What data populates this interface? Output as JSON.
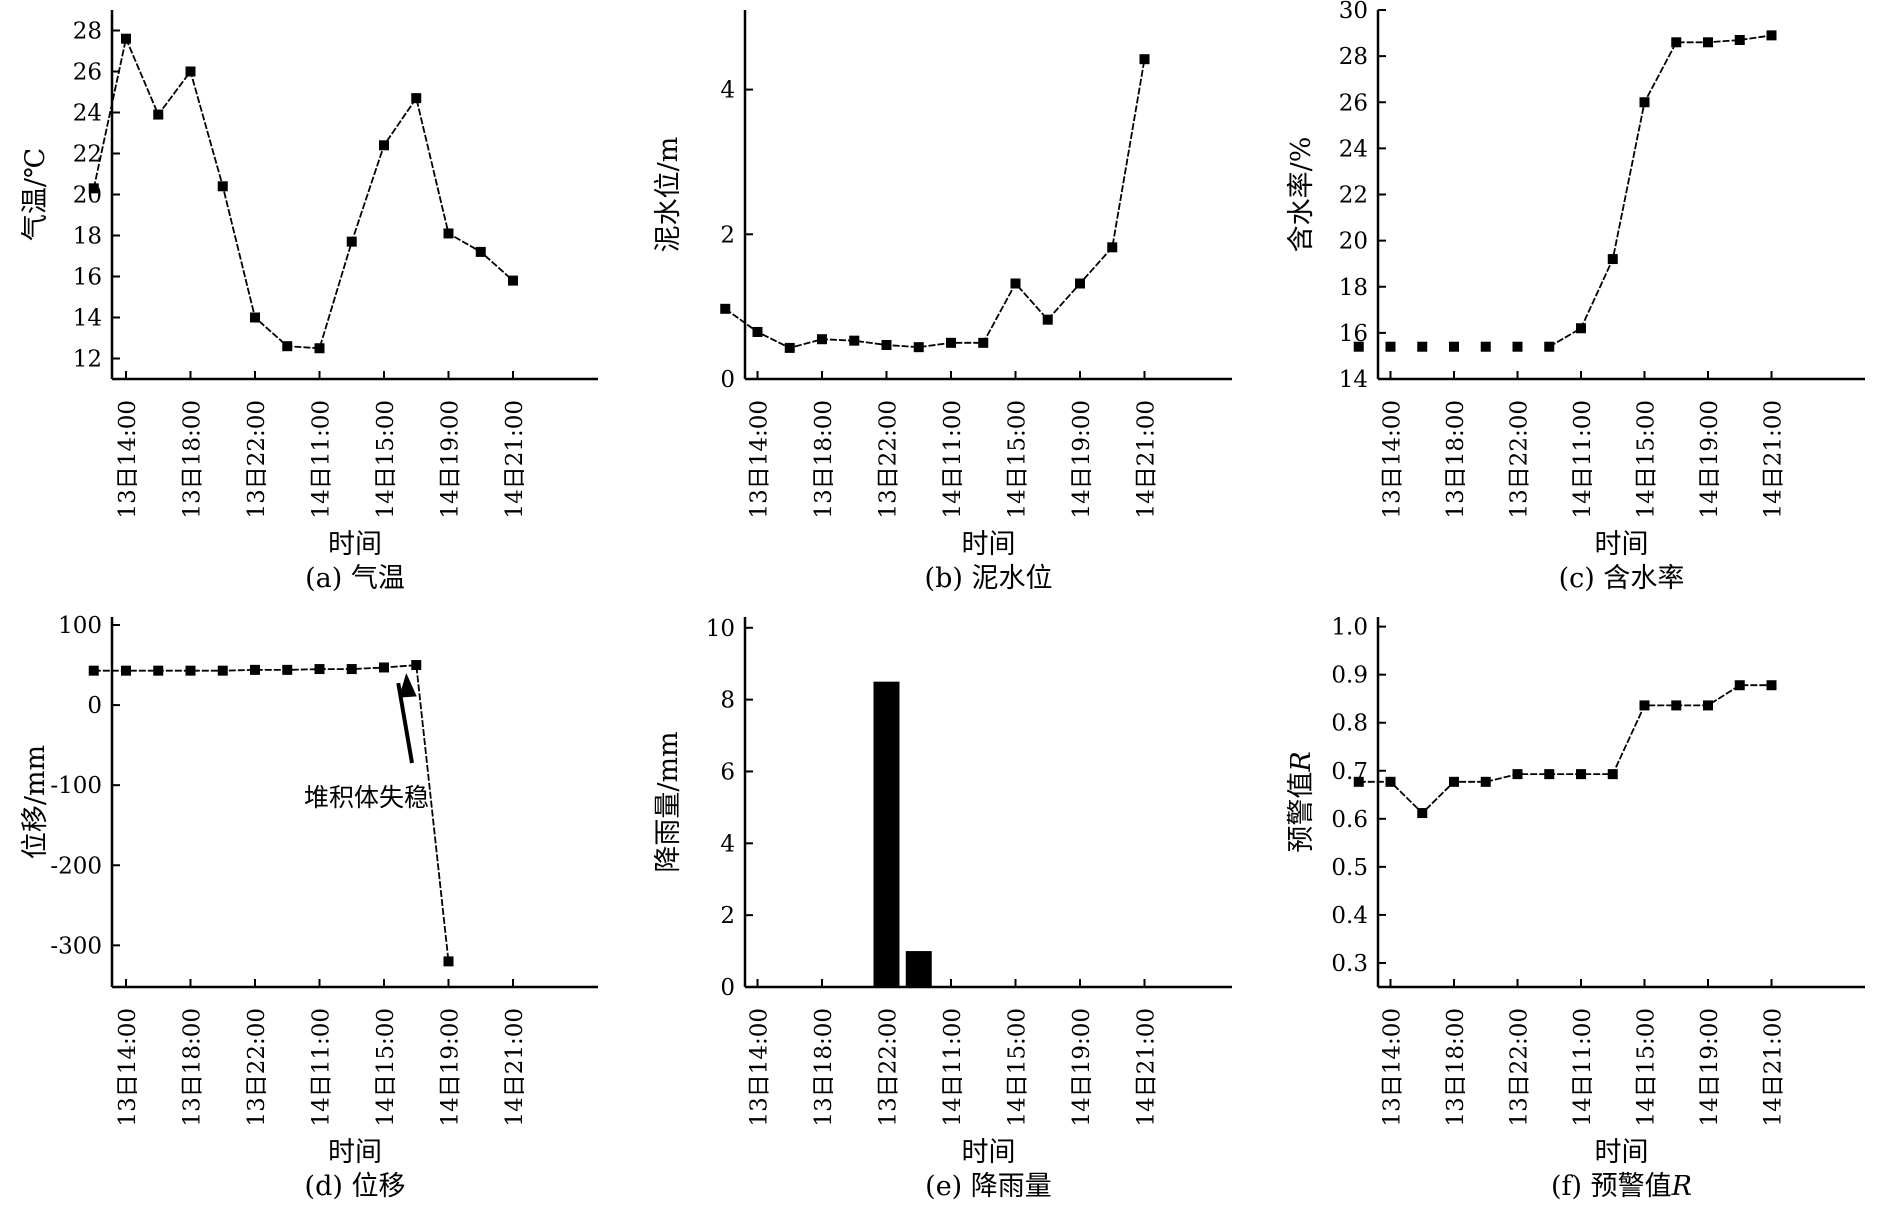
{
  "chart_data": [
    {
      "id": "a",
      "type": "line",
      "caption": "(a) 气温",
      "xlabel": "时间",
      "ylabel": "气温/℃",
      "ylim": [
        11,
        29
      ],
      "yticks": [
        12,
        14,
        16,
        18,
        20,
        22,
        24,
        26,
        28
      ],
      "grid": false,
      "categories": [
        "13日14:00",
        "13日18:00",
        "13日22:00",
        "14日11:00",
        "14日15:00",
        "14日19:00",
        "14日21:00"
      ],
      "series": [
        {
          "x": [
            0.5,
            1,
            1.5,
            2,
            2.5,
            3,
            3.5,
            4,
            4.5,
            5,
            5.5,
            6,
            6.5,
            7
          ],
          "y": [
            20.3,
            27.6,
            23.9,
            26.0,
            20.4,
            14.0,
            12.6,
            12.5,
            17.7,
            22.4,
            24.7,
            18.1,
            17.2,
            15.8
          ]
        }
      ]
    },
    {
      "id": "b",
      "type": "line",
      "caption": "(b) 泥水位",
      "xlabel": "时间",
      "ylabel": "泥水位/m",
      "ylim": [
        0,
        5.1
      ],
      "yticks": [
        0,
        2,
        4
      ],
      "grid": false,
      "categories": [
        "13日14:00",
        "13日18:00",
        "13日22:00",
        "14日11:00",
        "14日15:00",
        "14日19:00",
        "14日21:00"
      ],
      "series": [
        {
          "x": [
            0.5,
            1,
            1.5,
            2,
            2.5,
            3,
            3.5,
            4,
            4.5,
            5,
            5.5,
            6,
            6.5,
            7
          ],
          "y": [
            0.97,
            0.65,
            0.43,
            0.55,
            0.53,
            0.47,
            0.44,
            0.5,
            0.5,
            1.32,
            0.82,
            1.32,
            1.82,
            4.42
          ]
        }
      ]
    },
    {
      "id": "c",
      "type": "line",
      "caption": "(c) 含水率",
      "xlabel": "时间",
      "ylabel": "含水率/%",
      "ylim": [
        14,
        30
      ],
      "yticks": [
        14,
        16,
        18,
        20,
        22,
        24,
        26,
        28,
        30
      ],
      "grid": false,
      "categories": [
        "13日14:00",
        "13日18:00",
        "13日22:00",
        "14日11:00",
        "14日15:00",
        "14日19:00",
        "14日21:00"
      ],
      "series": [
        {
          "x": [
            0.5,
            1,
            1.5,
            2,
            2.5,
            3,
            3.5,
            4,
            4.5,
            5,
            5.5,
            6,
            6.5,
            7
          ],
          "y": [
            15.4,
            15.4,
            15.4,
            15.4,
            15.4,
            15.4,
            15.4,
            16.2,
            19.2,
            26.0,
            28.6,
            28.6,
            28.7,
            28.9
          ],
          "solid_from_index": 6
        }
      ]
    },
    {
      "id": "d",
      "type": "line",
      "caption": "(d) 位移",
      "xlabel": "时间",
      "ylabel": "位移/mm",
      "ylim": [
        -352,
        110
      ],
      "yticks": [
        -300,
        -200,
        -100,
        0,
        100
      ],
      "grid": false,
      "categories": [
        "13日14:00",
        "13日18:00",
        "13日22:00",
        "14日11:00",
        "14日15:00",
        "14日19:00",
        "14日21:00"
      ],
      "series": [
        {
          "x": [
            0.5,
            1,
            1.5,
            2,
            2.5,
            3,
            3.5,
            4,
            4.5,
            5,
            5.5,
            6
          ],
          "y": [
            43,
            43,
            43,
            43,
            43,
            44,
            44,
            45,
            45,
            47,
            50,
            -320
          ]
        }
      ],
      "annotation": {
        "text": "堆积体失稳",
        "x": 5.5,
        "y": 50
      }
    },
    {
      "id": "e",
      "type": "bar",
      "caption": "(e) 降雨量",
      "xlabel": "时间",
      "ylabel": "降雨量/mm",
      "ylim": [
        0,
        10.3
      ],
      "yticks": [
        0,
        2,
        4,
        6,
        8,
        10
      ],
      "grid": false,
      "categories": [
        "13日14:00",
        "13日18:00",
        "13日22:00",
        "14日11:00",
        "14日15:00",
        "14日19:00",
        "14日21:00"
      ],
      "series": [
        {
          "x": [
            3,
            3.5
          ],
          "y": [
            8.5,
            1.0
          ]
        }
      ]
    },
    {
      "id": "f",
      "type": "line",
      "caption": "(f) 预警值",
      "caption_italic": "R",
      "xlabel": "时间",
      "ylabel": "预警值",
      "ylabel_italic": "R",
      "ylim": [
        0.25,
        1.02
      ],
      "yticks": [
        0.3,
        0.4,
        0.5,
        0.6,
        0.7,
        0.8,
        0.9,
        1.0
      ],
      "grid": false,
      "categories": [
        "13日14:00",
        "13日18:00",
        "13日22:00",
        "14日11:00",
        "14日15:00",
        "14日19:00",
        "14日21:00"
      ],
      "series": [
        {
          "x": [
            0.5,
            1,
            1.5,
            2,
            2.5,
            3,
            3.5,
            4,
            4.5,
            5,
            5.5,
            6,
            6.5,
            7
          ],
          "y": [
            0.677,
            0.677,
            0.612,
            0.677,
            0.677,
            0.693,
            0.693,
            0.693,
            0.693,
            0.836,
            0.836,
            0.836,
            0.878,
            0.878
          ]
        }
      ]
    }
  ]
}
